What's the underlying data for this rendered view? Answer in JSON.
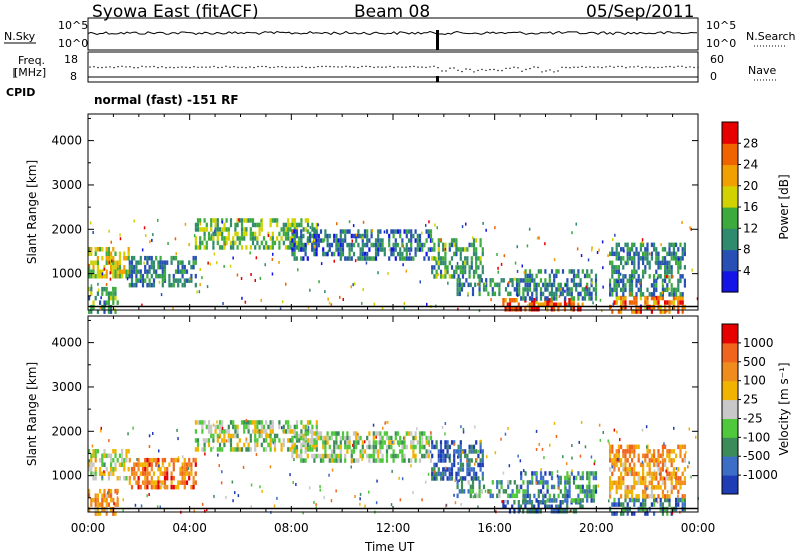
{
  "header": {
    "station": "Syowa East (fitACF)",
    "beam": "Beam 08",
    "date": "05/Sep/2011"
  },
  "strip": {
    "nsky_label": "N.Sky",
    "nsearch_label": "N.Search",
    "noise_tick_top": "10^5",
    "noise_tick_bottom": "10^0",
    "freq_label_line1": "Freq.",
    "freq_label_line2": "[MHz]",
    "freq_tick_top": "18",
    "freq_tick_bottom": "8",
    "nave_label": "Nave",
    "nave_tick_top": "60",
    "nave_tick_bottom": "0",
    "cpid_label": "CPID",
    "cpid_text": "normal (fast) -151 RF"
  },
  "chart_data": [
    {
      "type": "heatmap",
      "panel": "power",
      "ylabel": "Slant Range [km]",
      "xlabel": "Time UT",
      "x_ticks": [
        "00:00",
        "04:00",
        "08:00",
        "12:00",
        "16:00",
        "20:00",
        "00:00"
      ],
      "xlim_hours": [
        0,
        24
      ],
      "y_ticks": [
        1000,
        2000,
        3000,
        4000
      ],
      "ylim": [
        180,
        4600
      ],
      "colorbar_title": "Power [dB]",
      "colorbar_ticks": [
        "4",
        "8",
        "12",
        "16",
        "20",
        "24",
        "28"
      ],
      "colorbar_colors": [
        "#1414e6",
        "#2850b4",
        "#2f8a6e",
        "#3caa3c",
        "#d2d200",
        "#f0a000",
        "#f06400",
        "#e60000"
      ],
      "echo_regions": [
        {
          "t0": 0.0,
          "t1": 1.6,
          "r0": 900,
          "r1": 1600,
          "v": 0.55
        },
        {
          "t0": 0.0,
          "t1": 1.2,
          "r0": 180,
          "r1": 700,
          "v": 0.35
        },
        {
          "t0": 1.6,
          "t1": 4.2,
          "r0": 700,
          "r1": 1400,
          "v": 0.3
        },
        {
          "t0": 4.2,
          "t1": 9.0,
          "r0": 1600,
          "r1": 2250,
          "v": 0.45
        },
        {
          "t0": 8.0,
          "t1": 13.5,
          "r0": 1300,
          "r1": 2000,
          "v": 0.25
        },
        {
          "t0": 13.5,
          "t1": 15.5,
          "r0": 900,
          "r1": 1800,
          "v": 0.35
        },
        {
          "t0": 14.5,
          "t1": 17.0,
          "r0": 500,
          "r1": 900,
          "v": 0.3
        },
        {
          "t0": 16.3,
          "t1": 19.5,
          "r0": 180,
          "r1": 450,
          "v": 0.85
        },
        {
          "t0": 17.0,
          "t1": 20.0,
          "r0": 450,
          "r1": 1100,
          "v": 0.3
        },
        {
          "t0": 20.5,
          "t1": 23.5,
          "r0": 180,
          "r1": 500,
          "v": 0.75
        },
        {
          "t0": 20.5,
          "t1": 23.5,
          "r0": 500,
          "r1": 1700,
          "v": 0.3
        }
      ]
    },
    {
      "type": "heatmap",
      "panel": "velocity",
      "ylabel": "Slant Range [km]",
      "xlabel": "Time UT",
      "x_ticks": [
        "00:00",
        "04:00",
        "08:00",
        "12:00",
        "16:00",
        "20:00",
        "00:00"
      ],
      "xlim_hours": [
        0,
        24
      ],
      "y_ticks": [
        1000,
        2000,
        3000,
        4000
      ],
      "ylim": [
        180,
        4600
      ],
      "colorbar_title": "Velocity [m s⁻¹]",
      "colorbar_ticks": [
        "1000",
        "500",
        "100",
        "25",
        "-25",
        "-100",
        "-500",
        "-1000"
      ],
      "colorbar_colors": [
        "#1e3cb4",
        "#3c6ec8",
        "#3c8c5a",
        "#50c83c",
        "#c8c8c8",
        "#f0b400",
        "#f08c1e",
        "#f0641e",
        "#e60000"
      ],
      "echo_regions": [
        {
          "t0": 0.0,
          "t1": 1.6,
          "r0": 900,
          "r1": 1600,
          "v": 0.5
        },
        {
          "t0": 0.0,
          "t1": 1.2,
          "r0": 180,
          "r1": 700,
          "v": 0.7
        },
        {
          "t0": 1.6,
          "t1": 4.2,
          "r0": 700,
          "r1": 1400,
          "v": 0.75
        },
        {
          "t0": 4.2,
          "t1": 9.0,
          "r0": 1600,
          "r1": 2250,
          "v": 0.45
        },
        {
          "t0": 8.0,
          "t1": 13.5,
          "r0": 1300,
          "r1": 2000,
          "v": 0.45
        },
        {
          "t0": 13.5,
          "t1": 15.5,
          "r0": 900,
          "r1": 1800,
          "v": 0.15
        },
        {
          "t0": 14.5,
          "t1": 17.0,
          "r0": 500,
          "r1": 900,
          "v": 0.3
        },
        {
          "t0": 16.3,
          "t1": 19.5,
          "r0": 180,
          "r1": 450,
          "v": 0.15
        },
        {
          "t0": 17.0,
          "t1": 20.0,
          "r0": 450,
          "r1": 1100,
          "v": 0.25
        },
        {
          "t0": 20.5,
          "t1": 23.5,
          "r0": 180,
          "r1": 500,
          "v": 0.2
        },
        {
          "t0": 20.5,
          "t1": 23.5,
          "r0": 500,
          "r1": 1700,
          "v": 0.7
        }
      ]
    }
  ]
}
